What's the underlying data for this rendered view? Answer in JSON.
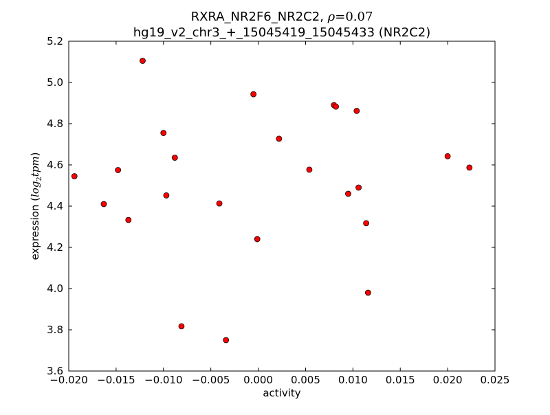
{
  "chart_data": {
    "type": "scatter",
    "title_line1": "RXRA_NR2F6_NR2C2, ",
    "title_rho_symbol": "ρ",
    "title_rho_value": "=0.07",
    "title_line2": "hg19_v2_chr3_+_15045419_15045433 (NR2C2)",
    "xlabel": "activity",
    "ylabel_prefix": "expression (",
    "ylabel_math": "log",
    "ylabel_sub": "2",
    "ylabel_math2": "tpm",
    "ylabel_suffix": ")",
    "xlim": [
      -0.02,
      0.025
    ],
    "ylim": [
      3.6,
      5.2
    ],
    "x_ticks": [
      -0.02,
      -0.015,
      -0.01,
      -0.005,
      0.0,
      0.005,
      0.01,
      0.015,
      0.02,
      0.025
    ],
    "x_tick_labels": [
      "−0.020",
      "−0.015",
      "−0.010",
      "−0.005",
      "0.000",
      "0.005",
      "0.010",
      "0.015",
      "0.020",
      "0.025"
    ],
    "y_ticks": [
      3.6,
      3.8,
      4.0,
      4.2,
      4.4,
      4.6,
      4.8,
      5.0,
      5.2
    ],
    "y_tick_labels": [
      "3.6",
      "3.8",
      "4.0",
      "4.2",
      "4.4",
      "4.6",
      "4.8",
      "5.0",
      "5.2"
    ],
    "grid": false,
    "marker_color": "#ff0000",
    "marker_edge": "#000000",
    "points": [
      {
        "x": -0.0194,
        "y": 4.545
      },
      {
        "x": -0.0163,
        "y": 4.41
      },
      {
        "x": -0.0148,
        "y": 4.575
      },
      {
        "x": -0.0137,
        "y": 4.333
      },
      {
        "x": -0.0122,
        "y": 5.105
      },
      {
        "x": -0.01,
        "y": 4.755
      },
      {
        "x": -0.0097,
        "y": 4.452
      },
      {
        "x": -0.0088,
        "y": 4.635
      },
      {
        "x": -0.0081,
        "y": 3.817
      },
      {
        "x": -0.0041,
        "y": 4.413
      },
      {
        "x": -0.0034,
        "y": 3.75
      },
      {
        "x": -0.0005,
        "y": 4.943
      },
      {
        "x": -0.0001,
        "y": 4.24
      },
      {
        "x": 0.0022,
        "y": 4.727
      },
      {
        "x": 0.0054,
        "y": 4.577
      },
      {
        "x": 0.008,
        "y": 4.89
      },
      {
        "x": 0.0082,
        "y": 4.883
      },
      {
        "x": 0.0095,
        "y": 4.46
      },
      {
        "x": 0.0104,
        "y": 4.862
      },
      {
        "x": 0.0106,
        "y": 4.49
      },
      {
        "x": 0.0114,
        "y": 4.317
      },
      {
        "x": 0.0116,
        "y": 3.98
      },
      {
        "x": 0.02,
        "y": 4.642
      },
      {
        "x": 0.0223,
        "y": 4.587
      }
    ]
  }
}
